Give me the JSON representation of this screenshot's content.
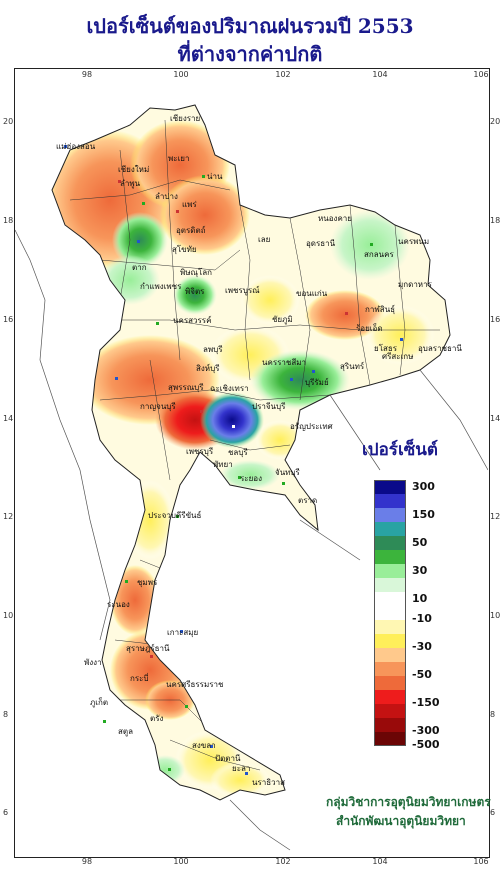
{
  "title": {
    "line1": "เปอร์เซ็นต์ของปริมาณฝนรวมปี 2553",
    "line2": "ที่ต่างจากค่าปกติ"
  },
  "axis": {
    "longitudes": [
      "98",
      "100",
      "102",
      "104",
      "106"
    ],
    "latitudes": [
      "20",
      "18",
      "16",
      "14",
      "12",
      "10",
      "8",
      "6"
    ]
  },
  "legend": {
    "title": "เปอร์เซ็นต์",
    "items": [
      {
        "color": "#0a0a8a",
        "label": "300"
      },
      {
        "color": "#3333cc",
        "label": ""
      },
      {
        "color": "#6a7ee8",
        "label": "150"
      },
      {
        "color": "#29a3a3",
        "label": ""
      },
      {
        "color": "#2e8b57",
        "label": "50"
      },
      {
        "color": "#3cb43c",
        "label": ""
      },
      {
        "color": "#99ee99",
        "label": "30"
      },
      {
        "color": "#d9f7d9",
        "label": ""
      },
      {
        "color": "#ffffff",
        "label": "10"
      },
      {
        "color": "#ffffff",
        "label": "-10"
      },
      {
        "color": "#fff7b3",
        "label": ""
      },
      {
        "color": "#ffef5a",
        "label": "-30"
      },
      {
        "color": "#ffc98c",
        "label": ""
      },
      {
        "color": "#f7955a",
        "label": "-50"
      },
      {
        "color": "#ee6a3a",
        "label": ""
      },
      {
        "color": "#ee1c1c",
        "label": "-150"
      },
      {
        "color": "#c41212",
        "label": ""
      },
      {
        "color": "#990a0a",
        "label": "-300"
      },
      {
        "color": "#6b0505",
        "label": "-500"
      }
    ]
  },
  "credit": {
    "line1": "กลุ่มวิชาการอุตุนิยมวิทยาเกษตร",
    "line2": "สำนักพัฒนาอุตุนิยมวิทยา"
  },
  "places": [
    {
      "name": "เชียงราย"
    },
    {
      "name": "แม่ฮ่องสอน"
    },
    {
      "name": "เชียงใหม่"
    },
    {
      "name": "ลำพูน"
    },
    {
      "name": "ลำปาง"
    },
    {
      "name": "พะเยา"
    },
    {
      "name": "น่าน"
    },
    {
      "name": "แพร่"
    },
    {
      "name": "อุตรดิตถ์"
    },
    {
      "name": "ตาก"
    },
    {
      "name": "สุโขทัย"
    },
    {
      "name": "พิษณุโลก"
    },
    {
      "name": "กำแพงเพชร"
    },
    {
      "name": "พิจิตร"
    },
    {
      "name": "เพชรบูรณ์"
    },
    {
      "name": "นครสวรรค์"
    },
    {
      "name": "เลย"
    },
    {
      "name": "หนองคาย"
    },
    {
      "name": "อุดรธานี"
    },
    {
      "name": "สกลนคร"
    },
    {
      "name": "นครพนม"
    },
    {
      "name": "มุกดาหาร"
    },
    {
      "name": "ขอนแก่น"
    },
    {
      "name": "ชัยภูมิ"
    },
    {
      "name": "กาฬสินธุ์"
    },
    {
      "name": "ร้อยเอ็ด"
    },
    {
      "name": "ยโสธร"
    },
    {
      "name": "อุบลราชธานี"
    },
    {
      "name": "สุรินทร์"
    },
    {
      "name": "ศรีสะเกษ"
    },
    {
      "name": "บุรีรัมย์"
    },
    {
      "name": "นครราชสีมา"
    },
    {
      "name": "ลพบุรี"
    },
    {
      "name": "สิงห์บุรี"
    },
    {
      "name": "สุพรรณบุรี"
    },
    {
      "name": "กาญจนบุรี"
    },
    {
      "name": "ปราจีนบุรี"
    },
    {
      "name": "ชลบุรี"
    },
    {
      "name": "ระยอง"
    },
    {
      "name": "จันทบุรี"
    },
    {
      "name": "ตราด"
    },
    {
      "name": "พัทยา"
    },
    {
      "name": "เพชรบุรี"
    },
    {
      "name": "ประจวบคีรีขันธ์"
    },
    {
      "name": "ชุมพร"
    },
    {
      "name": "ระนอง"
    },
    {
      "name": "เกาะสมุย"
    },
    {
      "name": "สุราษฎร์ธานี"
    },
    {
      "name": "พังงา"
    },
    {
      "name": "ภูเก็ต"
    },
    {
      "name": "กระบี่"
    },
    {
      "name": "นครศรีธรรมราช"
    },
    {
      "name": "ตรัง"
    },
    {
      "name": "สตูล"
    },
    {
      "name": "สงขลา"
    },
    {
      "name": "ปัตตานี"
    },
    {
      "name": "ยะลา"
    },
    {
      "name": "นราธิวาส"
    },
    {
      "name": "ฉะเชิงเทรา"
    },
    {
      "name": "อรัญประเทศ"
    }
  ]
}
